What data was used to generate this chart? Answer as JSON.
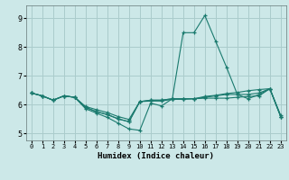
{
  "xlabel": "Humidex (Indice chaleur)",
  "bg_color": "#cce8e8",
  "grid_color": "#aacccc",
  "line_color": "#1a7a6e",
  "xlim": [
    -0.5,
    23.5
  ],
  "ylim": [
    4.75,
    9.45
  ],
  "xticks": [
    0,
    1,
    2,
    3,
    4,
    5,
    6,
    7,
    8,
    9,
    10,
    11,
    12,
    13,
    14,
    15,
    16,
    17,
    18,
    19,
    20,
    21,
    22,
    23
  ],
  "yticks": [
    5,
    6,
    7,
    8,
    9
  ],
  "series": [
    [
      6.4,
      6.3,
      6.15,
      6.3,
      6.25,
      5.85,
      5.7,
      5.55,
      5.35,
      5.15,
      5.1,
      6.05,
      5.95,
      6.2,
      8.5,
      8.5,
      9.1,
      8.2,
      7.3,
      6.35,
      6.2,
      6.35,
      6.55,
      5.58
    ],
    [
      6.4,
      6.3,
      6.15,
      6.3,
      6.25,
      5.9,
      5.75,
      5.65,
      5.5,
      5.4,
      6.1,
      6.15,
      6.15,
      6.2,
      6.2,
      6.2,
      6.22,
      6.22,
      6.22,
      6.25,
      6.28,
      6.3,
      6.55,
      5.58
    ],
    [
      6.4,
      6.3,
      6.15,
      6.3,
      6.25,
      5.9,
      5.75,
      5.65,
      5.5,
      5.4,
      6.1,
      6.15,
      6.15,
      6.2,
      6.2,
      6.2,
      6.25,
      6.3,
      6.35,
      6.35,
      6.35,
      6.4,
      6.55,
      5.58
    ],
    [
      6.4,
      6.3,
      6.15,
      6.3,
      6.25,
      5.93,
      5.82,
      5.72,
      5.58,
      5.48,
      6.1,
      6.12,
      6.12,
      6.18,
      6.18,
      6.2,
      6.28,
      6.32,
      6.38,
      6.42,
      6.48,
      6.52,
      6.55,
      5.62
    ]
  ]
}
